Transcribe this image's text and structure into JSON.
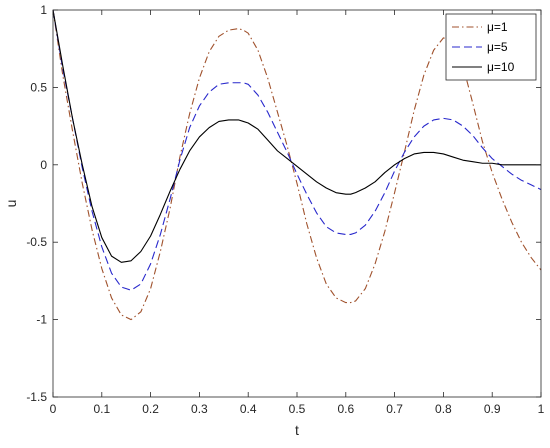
{
  "chart_data": {
    "type": "line",
    "title": "",
    "xlabel": "t",
    "ylabel": "u",
    "xlim": [
      0,
      1
    ],
    "ylim": [
      -1.5,
      1
    ],
    "xticks": [
      "0",
      "0.1",
      "0.2",
      "0.3",
      "0.4",
      "0.5",
      "0.6",
      "0.7",
      "0.8",
      "0.9",
      "1"
    ],
    "yticks": [
      "1",
      "0.5",
      "0",
      "-0.5",
      "-1",
      "-1.5"
    ],
    "grid": false,
    "legend_position": "top-right",
    "series": [
      {
        "name": "μ=1",
        "style": "dash-dot",
        "color": "#A0522D",
        "x": [
          0,
          0.02,
          0.04,
          0.06,
          0.08,
          0.1,
          0.12,
          0.14,
          0.16,
          0.18,
          0.2,
          0.22,
          0.24,
          0.26,
          0.28,
          0.3,
          0.32,
          0.34,
          0.36,
          0.38,
          0.39,
          0.4,
          0.42,
          0.44,
          0.46,
          0.48,
          0.5,
          0.52,
          0.54,
          0.56,
          0.58,
          0.6,
          0.61,
          0.62,
          0.64,
          0.66,
          0.68,
          0.7,
          0.72,
          0.74,
          0.76,
          0.78,
          0.8,
          0.82,
          0.84,
          0.86,
          0.88,
          0.9,
          0.92,
          0.94,
          0.96,
          0.98,
          1.0
        ],
        "y": [
          1,
          0.58,
          0.22,
          -0.12,
          -0.42,
          -0.67,
          -0.86,
          -0.97,
          -1.0,
          -0.95,
          -0.8,
          -0.56,
          -0.28,
          0.05,
          0.33,
          0.56,
          0.73,
          0.83,
          0.87,
          0.88,
          0.87,
          0.85,
          0.74,
          0.56,
          0.34,
          0.12,
          -0.12,
          -0.38,
          -0.6,
          -0.77,
          -0.86,
          -0.89,
          -0.89,
          -0.88,
          -0.8,
          -0.64,
          -0.43,
          -0.18,
          0.08,
          0.35,
          0.58,
          0.74,
          0.82,
          0.8,
          0.64,
          0.4,
          0.15,
          -0.05,
          -0.22,
          -0.37,
          -0.5,
          -0.6,
          -0.68
        ]
      },
      {
        "name": "μ=5",
        "style": "dashed",
        "color": "#2929CC",
        "x": [
          0,
          0.02,
          0.04,
          0.06,
          0.08,
          0.1,
          0.12,
          0.14,
          0.16,
          0.18,
          0.2,
          0.22,
          0.24,
          0.26,
          0.28,
          0.3,
          0.32,
          0.34,
          0.36,
          0.38,
          0.39,
          0.4,
          0.42,
          0.44,
          0.46,
          0.48,
          0.5,
          0.52,
          0.54,
          0.56,
          0.58,
          0.6,
          0.61,
          0.62,
          0.64,
          0.66,
          0.68,
          0.7,
          0.72,
          0.74,
          0.76,
          0.78,
          0.8,
          0.82,
          0.84,
          0.86,
          0.88,
          0.9,
          0.92,
          0.94,
          0.96,
          0.98,
          1.0
        ],
        "y": [
          1,
          0.62,
          0.3,
          -0.02,
          -0.3,
          -0.53,
          -0.7,
          -0.79,
          -0.81,
          -0.77,
          -0.64,
          -0.45,
          -0.22,
          0.03,
          0.24,
          0.38,
          0.47,
          0.52,
          0.53,
          0.53,
          0.53,
          0.52,
          0.45,
          0.34,
          0.21,
          0.08,
          -0.06,
          -0.19,
          -0.31,
          -0.4,
          -0.44,
          -0.45,
          -0.45,
          -0.44,
          -0.39,
          -0.3,
          -0.18,
          -0.04,
          0.08,
          0.18,
          0.25,
          0.29,
          0.3,
          0.29,
          0.25,
          0.19,
          0.11,
          0.04,
          -0.01,
          -0.06,
          -0.1,
          -0.13,
          -0.16
        ]
      },
      {
        "name": "μ=10",
        "style": "solid",
        "color": "#000000",
        "x": [
          0,
          0.02,
          0.04,
          0.06,
          0.08,
          0.1,
          0.12,
          0.14,
          0.16,
          0.18,
          0.2,
          0.22,
          0.24,
          0.26,
          0.28,
          0.3,
          0.32,
          0.34,
          0.36,
          0.38,
          0.39,
          0.4,
          0.42,
          0.44,
          0.46,
          0.48,
          0.5,
          0.52,
          0.54,
          0.56,
          0.58,
          0.6,
          0.61,
          0.62,
          0.64,
          0.66,
          0.68,
          0.7,
          0.72,
          0.74,
          0.76,
          0.78,
          0.8,
          0.82,
          0.84,
          0.86,
          0.88,
          0.9,
          0.92,
          0.94,
          0.96,
          0.98,
          1.0
        ],
        "y": [
          1,
          0.64,
          0.3,
          0.0,
          -0.27,
          -0.47,
          -0.59,
          -0.63,
          -0.62,
          -0.56,
          -0.46,
          -0.32,
          -0.17,
          -0.03,
          0.09,
          0.18,
          0.24,
          0.28,
          0.29,
          0.29,
          0.28,
          0.27,
          0.23,
          0.16,
          0.09,
          0.04,
          -0.01,
          -0.06,
          -0.11,
          -0.15,
          -0.18,
          -0.19,
          -0.19,
          -0.18,
          -0.15,
          -0.11,
          -0.05,
          0.0,
          0.04,
          0.07,
          0.08,
          0.08,
          0.07,
          0.05,
          0.03,
          0.02,
          0.01,
          0.01,
          0.0,
          0.0,
          0.0,
          0.0,
          0.0
        ]
      }
    ]
  },
  "colors": {
    "axis": "#262626",
    "background": "#ffffff"
  }
}
